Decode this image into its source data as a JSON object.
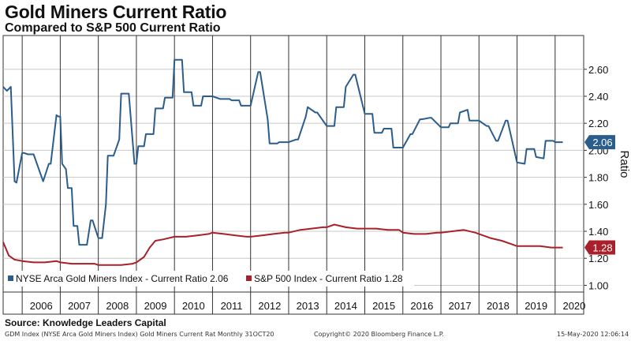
{
  "header": {
    "title": "Gold Miners Current Ratio",
    "subtitle": "Compared to S&P 500 Current Ratio"
  },
  "source": "Source:  Knowledge Leaders Capital",
  "footer": {
    "left": "GDM Index (NYSE Arca Gold Miners Index) Gold Miners Current Rat  Monthly 31OCT20",
    "center": "Copyright© 2020 Bloomberg Finance L.P.",
    "right": "15-May-2020 12:06:14"
  },
  "chart_data": {
    "type": "line",
    "ylabel": "Ratio",
    "ylim": [
      0.95,
      2.85
    ],
    "y_ticks": [
      1.0,
      1.2,
      1.4,
      1.6,
      1.8,
      2.0,
      2.2,
      2.4,
      2.6
    ],
    "y_tick_labels": [
      "1.00",
      "1.20",
      "1.40",
      "1.60",
      "1.80",
      "2.00",
      "2.20",
      "2.40",
      "2.60"
    ],
    "xlim": [
      2005.5,
      2020.75
    ],
    "x_ticks": [
      2006,
      2007,
      2008,
      2009,
      2010,
      2011,
      2012,
      2013,
      2014,
      2015,
      2016,
      2017,
      2018,
      2019,
      2020
    ],
    "grid": true,
    "legend_position": "bottom-left",
    "series": [
      {
        "name": "NYSE Arca Gold Miners Index - Current Ratio 2.06",
        "color": "#2b5d8c",
        "last_value_label": "2.06",
        "x": [
          2005.5,
          2005.6,
          2005.7,
          2005.8,
          2005.85,
          2006.0,
          2006.05,
          2006.15,
          2006.3,
          2006.5,
          2006.55,
          2006.7,
          2006.75,
          2006.9,
          2006.95,
          2007.0,
          2007.05,
          2007.15,
          2007.2,
          2007.3,
          2007.35,
          2007.45,
          2007.5,
          2007.7,
          2007.8,
          2007.85,
          2008.0,
          2008.1,
          2008.2,
          2008.25,
          2008.4,
          2008.55,
          2008.6,
          2008.8,
          2008.95,
          2009.0,
          2009.05,
          2009.2,
          2009.25,
          2009.45,
          2009.5,
          2009.7,
          2009.75,
          2009.95,
          2010.0,
          2010.2,
          2010.25,
          2010.45,
          2010.5,
          2010.7,
          2010.75,
          2010.95,
          2011.0,
          2011.2,
          2011.25,
          2011.45,
          2011.5,
          2011.7,
          2011.75,
          2012.0,
          2012.2,
          2012.25,
          2012.45,
          2012.5,
          2012.7,
          2012.75,
          2013.0,
          2013.2,
          2013.25,
          2013.45,
          2013.5,
          2013.7,
          2013.75,
          2014.0,
          2014.2,
          2014.25,
          2014.45,
          2014.5,
          2014.7,
          2014.75,
          2015.0,
          2015.2,
          2015.25,
          2015.45,
          2015.5,
          2015.7,
          2015.75,
          2016.0,
          2016.2,
          2016.25,
          2016.45,
          2016.5,
          2016.7,
          2016.75,
          2017.0,
          2017.2,
          2017.25,
          2017.45,
          2017.5,
          2017.7,
          2017.75,
          2018.0,
          2018.2,
          2018.25,
          2018.45,
          2018.5,
          2018.7,
          2018.75,
          2019.0,
          2019.2,
          2019.25,
          2019.45,
          2019.5,
          2019.7,
          2019.75,
          2019.95,
          2020.0,
          2020.2
        ],
        "values": [
          2.47,
          2.44,
          2.47,
          1.77,
          1.76,
          1.98,
          1.98,
          1.97,
          1.97,
          1.81,
          1.77,
          1.9,
          1.9,
          2.26,
          2.25,
          2.25,
          1.9,
          1.86,
          1.72,
          1.72,
          1.44,
          1.44,
          1.3,
          1.3,
          1.48,
          1.48,
          1.35,
          1.35,
          1.6,
          1.96,
          1.96,
          2.08,
          2.42,
          2.42,
          1.9,
          1.9,
          2.03,
          2.03,
          2.12,
          2.12,
          2.31,
          2.31,
          2.39,
          2.39,
          2.67,
          2.67,
          2.43,
          2.43,
          2.33,
          2.33,
          2.4,
          2.4,
          2.4,
          2.38,
          2.38,
          2.38,
          2.37,
          2.37,
          2.33,
          2.33,
          2.58,
          2.58,
          2.23,
          2.05,
          2.05,
          2.06,
          2.06,
          2.08,
          2.08,
          2.25,
          2.32,
          2.28,
          2.28,
          2.18,
          2.18,
          2.32,
          2.32,
          2.47,
          2.56,
          2.56,
          2.27,
          2.27,
          2.13,
          2.13,
          2.16,
          2.16,
          2.02,
          2.02,
          2.12,
          2.12,
          2.23,
          2.23,
          2.24,
          2.24,
          2.17,
          2.17,
          2.2,
          2.2,
          2.28,
          2.3,
          2.22,
          2.22,
          2.18,
          2.18,
          2.07,
          2.07,
          2.22,
          2.22,
          1.91,
          1.9,
          2.01,
          2.01,
          1.95,
          1.94,
          2.07,
          2.07,
          2.06,
          2.06
        ]
      },
      {
        "name": "S&P 500 Index - Current Ratio 1.28",
        "color": "#a8202a",
        "last_value_label": "1.28",
        "x": [
          2005.5,
          2005.65,
          2005.8,
          2006.0,
          2006.3,
          2006.6,
          2006.9,
          2007.0,
          2007.3,
          2007.6,
          2007.9,
          2008.0,
          2008.3,
          2008.6,
          2008.9,
          2009.0,
          2009.2,
          2009.35,
          2009.5,
          2009.7,
          2010.0,
          2010.3,
          2010.6,
          2010.9,
          2011.0,
          2011.3,
          2011.6,
          2011.9,
          2012.0,
          2012.3,
          2012.6,
          2012.9,
          2013.0,
          2013.3,
          2013.6,
          2013.9,
          2014.0,
          2014.2,
          2014.5,
          2014.8,
          2015.0,
          2015.3,
          2015.6,
          2015.9,
          2016.0,
          2016.3,
          2016.6,
          2016.9,
          2017.0,
          2017.3,
          2017.6,
          2017.9,
          2018.0,
          2018.3,
          2018.6,
          2018.9,
          2019.0,
          2019.3,
          2019.6,
          2019.9,
          2020.0,
          2020.2
        ],
        "values": [
          1.32,
          1.22,
          1.19,
          1.18,
          1.17,
          1.17,
          1.18,
          1.17,
          1.16,
          1.16,
          1.16,
          1.15,
          1.15,
          1.15,
          1.16,
          1.17,
          1.21,
          1.28,
          1.33,
          1.34,
          1.36,
          1.36,
          1.37,
          1.38,
          1.39,
          1.38,
          1.37,
          1.36,
          1.36,
          1.37,
          1.38,
          1.39,
          1.39,
          1.41,
          1.42,
          1.43,
          1.43,
          1.45,
          1.43,
          1.42,
          1.42,
          1.42,
          1.41,
          1.41,
          1.39,
          1.38,
          1.38,
          1.39,
          1.39,
          1.4,
          1.41,
          1.39,
          1.38,
          1.35,
          1.33,
          1.3,
          1.29,
          1.29,
          1.29,
          1.28,
          1.28,
          1.28
        ]
      }
    ]
  }
}
